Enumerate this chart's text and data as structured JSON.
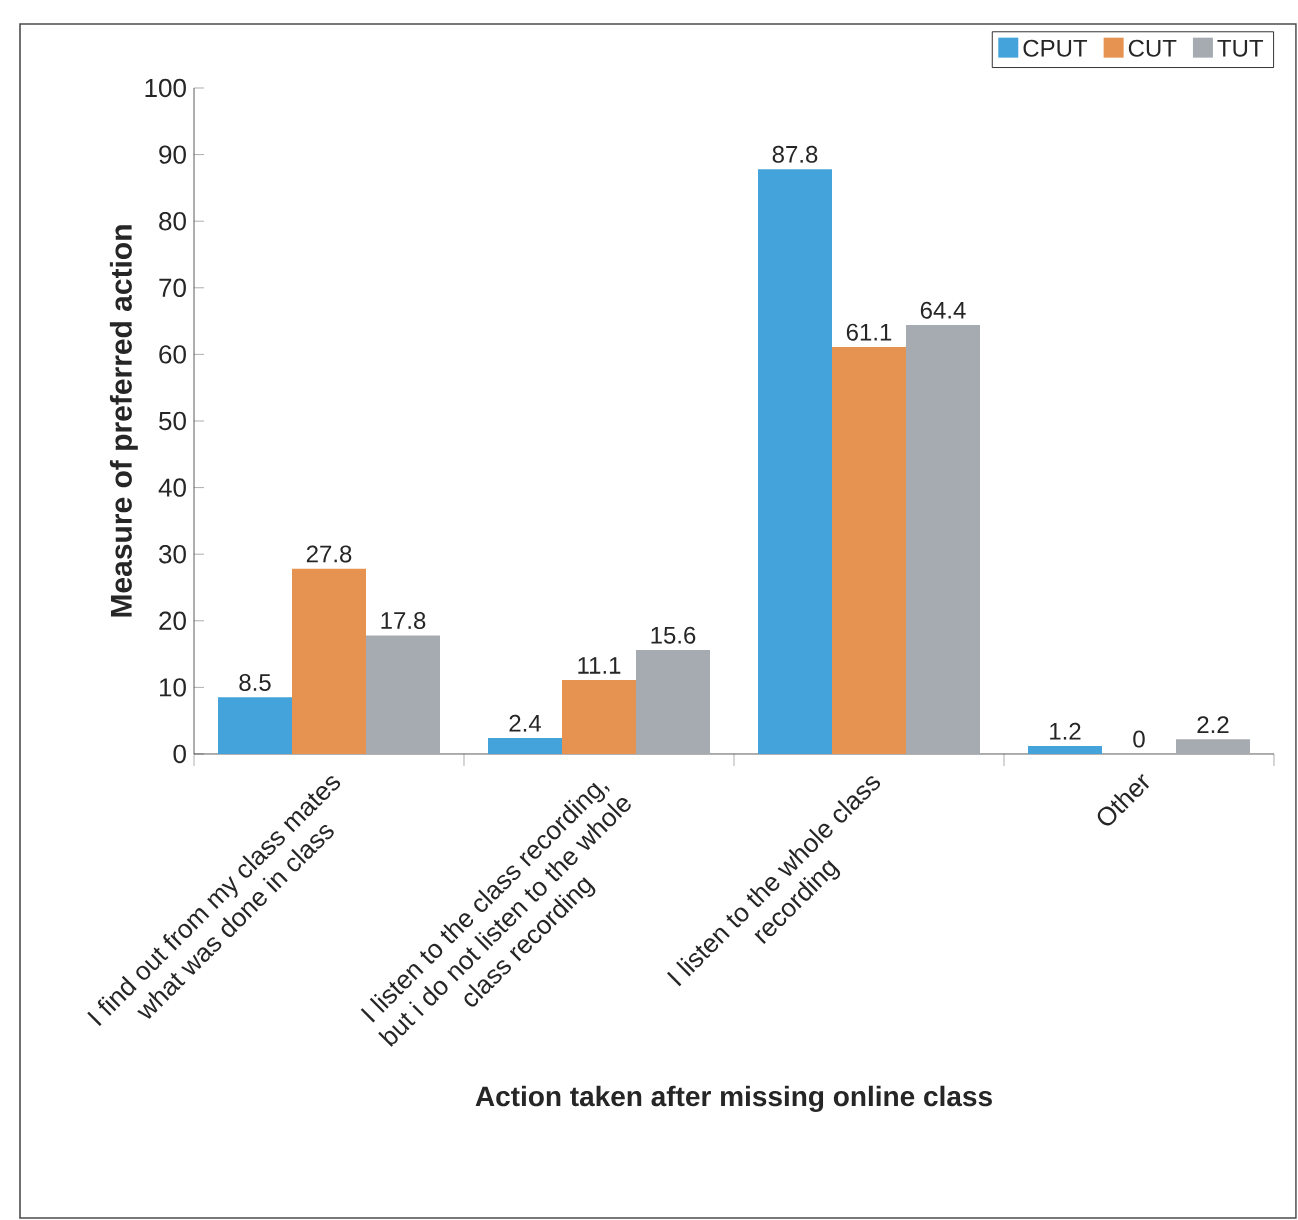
{
  "chart_data": {
    "type": "bar",
    "xlabel": "Action taken after missing online class",
    "ylabel": "Measure of preferred action",
    "categories": [
      "I find out from my class mates what was done in class",
      "I listen to the class recording, but i do not listen to the whole class recording",
      "I listen to the whole class recording",
      "Other"
    ],
    "series": [
      {
        "name": "CPUT",
        "color": "#44a3da",
        "values": [
          8.5,
          2.4,
          87.8,
          1.2
        ]
      },
      {
        "name": "CUT",
        "color": "#e69250",
        "values": [
          27.8,
          11.1,
          61.1,
          0
        ]
      },
      {
        "name": "TUT",
        "color": "#a6abb2",
        "values": [
          17.8,
          15.6,
          64.4,
          2.2
        ]
      }
    ],
    "ylim": [
      0,
      100
    ],
    "yticks": [
      0,
      10,
      20,
      30,
      40,
      50,
      60,
      70,
      80,
      90,
      100
    ],
    "legend": "top right",
    "data_labels": true
  }
}
